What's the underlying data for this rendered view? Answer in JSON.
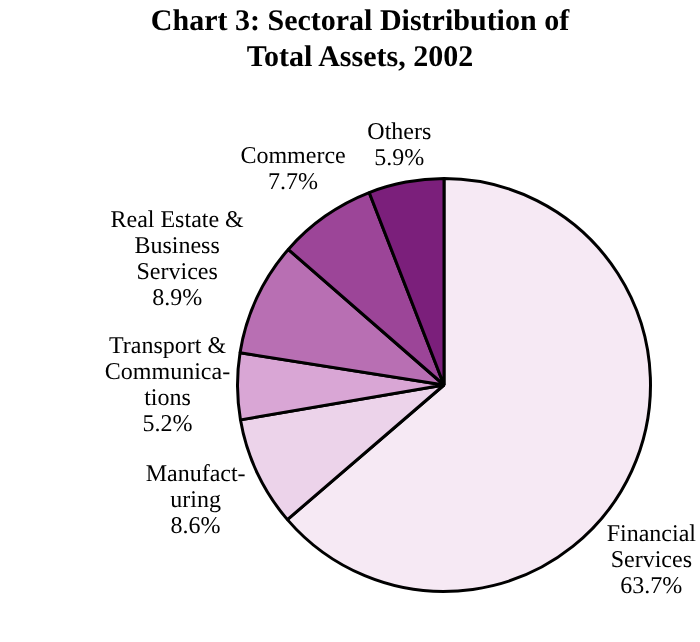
{
  "chart_data": {
    "type": "pie",
    "title": "Chart 3: Sectoral Distribution of Total Assets, 2002",
    "categories": [
      "Financial Services",
      "Manufact-uring",
      "Transport & Communica-tions",
      "Real Estate & Business Services",
      "Commerce",
      "Others"
    ],
    "values": [
      63.7,
      8.6,
      5.2,
      8.9,
      7.7,
      5.9
    ],
    "value_labels": [
      "63.7%",
      "8.6%",
      "5.2%",
      "8.9%",
      "7.7%",
      "5.9%"
    ],
    "colors": [
      "#f6e9f4",
      "#ecd3ea",
      "#d9a6d5",
      "#b86fb3",
      "#9c4598",
      "#7b1f7b"
    ],
    "legend": false
  }
}
